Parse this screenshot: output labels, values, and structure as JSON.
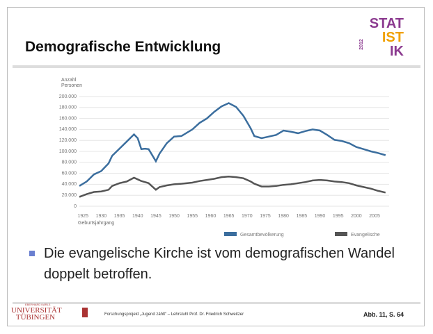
{
  "slide_title": "Demografische Entwicklung",
  "logo": {
    "line1": "STAT",
    "line2": "IST",
    "line3": "IK",
    "year": "2012"
  },
  "bullet": "Die evangelische Kirche ist vom demografischen Wandel doppelt betroffen.",
  "footer": {
    "university_top": "EBERHARD KARLS",
    "university": "UNIVERSITÄT TÜBINGEN",
    "project": "Forschungsprojekt „Jugend zählt“ – Lehrstuhl Prof. Dr. Friedrich Schweitzer",
    "source": "Abb. 11, S. 64"
  },
  "chart_data": {
    "type": "line",
    "y_label": "Anzahl Personen",
    "x_label": "Geburtsjahrgang",
    "x": [
      1924,
      1926,
      1928,
      1930,
      1932,
      1933,
      1935,
      1937,
      1939,
      1940,
      1941,
      1942,
      1943,
      1945,
      1946,
      1948,
      1950,
      1952,
      1955,
      1957,
      1959,
      1961,
      1963,
      1965,
      1967,
      1969,
      1971,
      1972,
      1974,
      1976,
      1978,
      1980,
      1982,
      1984,
      1986,
      1988,
      1990,
      1992,
      1994,
      1996,
      1998,
      2000,
      2002,
      2004,
      2006,
      2008
    ],
    "series": [
      {
        "name": "Gesamtbevölkerung",
        "color": "#3b6e9e",
        "values": [
          37000,
          45000,
          58000,
          64000,
          78000,
          92000,
          105000,
          118000,
          131000,
          124000,
          104000,
          105000,
          104000,
          82000,
          96000,
          115000,
          127000,
          128000,
          140000,
          152000,
          160000,
          172000,
          182000,
          188000,
          181000,
          165000,
          142000,
          128000,
          124000,
          127000,
          130000,
          138000,
          136000,
          133000,
          137000,
          140000,
          138000,
          130000,
          121000,
          119000,
          115000,
          108000,
          104000,
          100000,
          97000,
          93000
        ]
      },
      {
        "name": "Evangelische",
        "color": "#555555",
        "values": [
          17000,
          22000,
          26000,
          27000,
          30000,
          37000,
          42000,
          45000,
          52000,
          49000,
          46000,
          44000,
          42000,
          30000,
          35000,
          38000,
          40000,
          41000,
          43000,
          46000,
          48000,
          50000,
          53000,
          54000,
          53000,
          51000,
          45000,
          41000,
          36000,
          36000,
          37000,
          39000,
          40000,
          42000,
          44000,
          47000,
          48000,
          47000,
          45000,
          44000,
          42000,
          38000,
          35000,
          32000,
          28000,
          25000
        ]
      }
    ],
    "xlim": [
      1924,
      2009
    ],
    "xticks": [
      1925,
      1930,
      1935,
      1940,
      1945,
      1950,
      1955,
      1960,
      1965,
      1970,
      1975,
      1980,
      1985,
      1990,
      1995,
      2000,
      2005
    ],
    "ylim": [
      0,
      200000
    ],
    "yticks": [
      0,
      {
        "value": 20000,
        "label": "20.000"
      },
      {
        "value": 40000,
        "label": "40.000"
      },
      {
        "value": 60000,
        "label": "60.000"
      },
      {
        "value": 80000,
        "label": "80.000"
      },
      {
        "value": 100000,
        "label": "100.000"
      },
      {
        "value": 120000,
        "label": "120.000"
      },
      {
        "value": 140000,
        "label": "140.000"
      },
      {
        "value": 160000,
        "label": "160.000"
      },
      {
        "value": 180000,
        "label": "180.000"
      },
      {
        "value": 200000,
        "label": "200.000"
      }
    ],
    "grid": true
  }
}
